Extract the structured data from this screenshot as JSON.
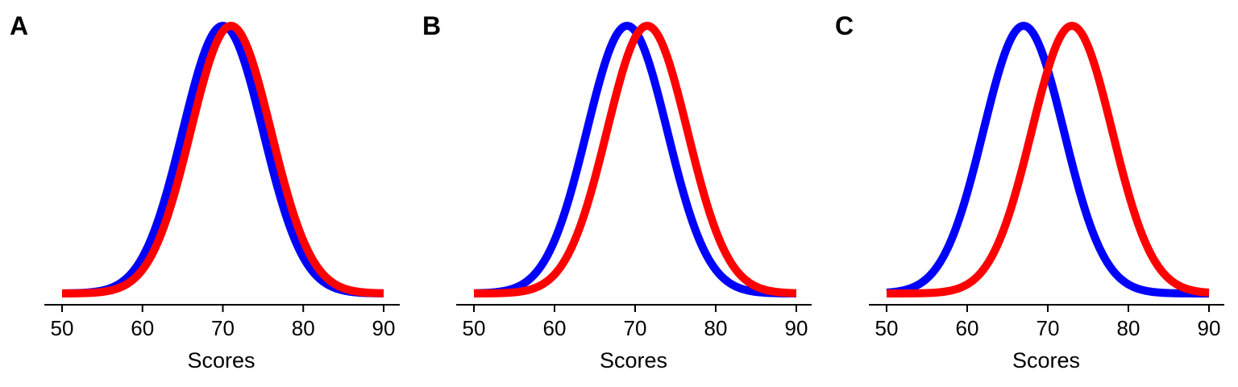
{
  "chart_data": [
    {
      "type": "line",
      "panel_label": "A",
      "xlabel": "Scores",
      "ylabel": "",
      "xlim": [
        50,
        90
      ],
      "x_ticks": [
        50,
        60,
        70,
        80,
        90
      ],
      "x_tick_labels": [
        "50",
        "60",
        "70",
        "80",
        "90"
      ],
      "y_axis_visible": false,
      "series": [
        {
          "name": "blue",
          "color": "#0000ff",
          "distribution": "normal",
          "mean": 70,
          "sd": 5
        },
        {
          "name": "red",
          "color": "#ff0000",
          "distribution": "normal",
          "mean": 71,
          "sd": 5
        }
      ]
    },
    {
      "type": "line",
      "panel_label": "B",
      "xlabel": "Scores",
      "ylabel": "",
      "xlim": [
        50,
        90
      ],
      "x_ticks": [
        50,
        60,
        70,
        80,
        90
      ],
      "x_tick_labels": [
        "50",
        "60",
        "70",
        "80",
        "90"
      ],
      "y_axis_visible": false,
      "series": [
        {
          "name": "blue",
          "color": "#0000ff",
          "distribution": "normal",
          "mean": 69,
          "sd": 5
        },
        {
          "name": "red",
          "color": "#ff0000",
          "distribution": "normal",
          "mean": 71.5,
          "sd": 5
        }
      ]
    },
    {
      "type": "line",
      "panel_label": "C",
      "xlabel": "Scores",
      "ylabel": "",
      "xlim": [
        50,
        90
      ],
      "x_ticks": [
        50,
        60,
        70,
        80,
        90
      ],
      "x_tick_labels": [
        "50",
        "60",
        "70",
        "80",
        "90"
      ],
      "y_axis_visible": false,
      "series": [
        {
          "name": "blue",
          "color": "#0000ff",
          "distribution": "normal",
          "mean": 67,
          "sd": 5
        },
        {
          "name": "red",
          "color": "#ff0000",
          "distribution": "normal",
          "mean": 73,
          "sd": 5
        }
      ]
    }
  ]
}
